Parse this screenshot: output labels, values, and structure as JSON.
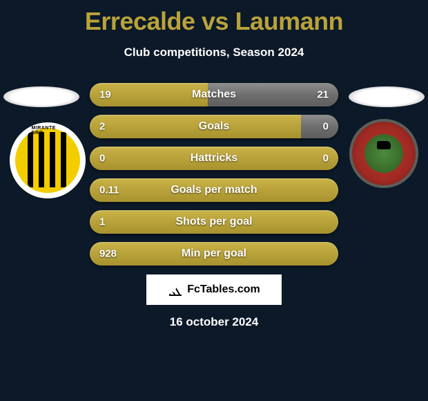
{
  "title": "Errecalde vs Laumann",
  "subtitle": "Club competitions, Season 2024",
  "colors": {
    "background": "#0b1928",
    "gold": "#b9a23a",
    "grey": "#6f6f6f",
    "text": "#ffffff"
  },
  "bars": [
    {
      "label": "Matches",
      "left": "19",
      "right": "21",
      "left_pct": 47.5,
      "right_pct": 52.5
    },
    {
      "label": "Goals",
      "left": "2",
      "right": "0",
      "left_pct": 85,
      "right_pct": 15
    },
    {
      "label": "Hattricks",
      "left": "0",
      "right": "0",
      "left_pct": 100,
      "right_pct": 0
    },
    {
      "label": "Goals per match",
      "left": "0.11",
      "right": "",
      "left_pct": 100,
      "right_pct": 0
    },
    {
      "label": "Shots per goal",
      "left": "1",
      "right": "",
      "left_pct": 100,
      "right_pct": 0
    },
    {
      "label": "Min per goal",
      "left": "928",
      "right": "",
      "left_pct": 100,
      "right_pct": 0
    }
  ],
  "footer_brand": "FcTables.com",
  "date": "16 october 2024"
}
